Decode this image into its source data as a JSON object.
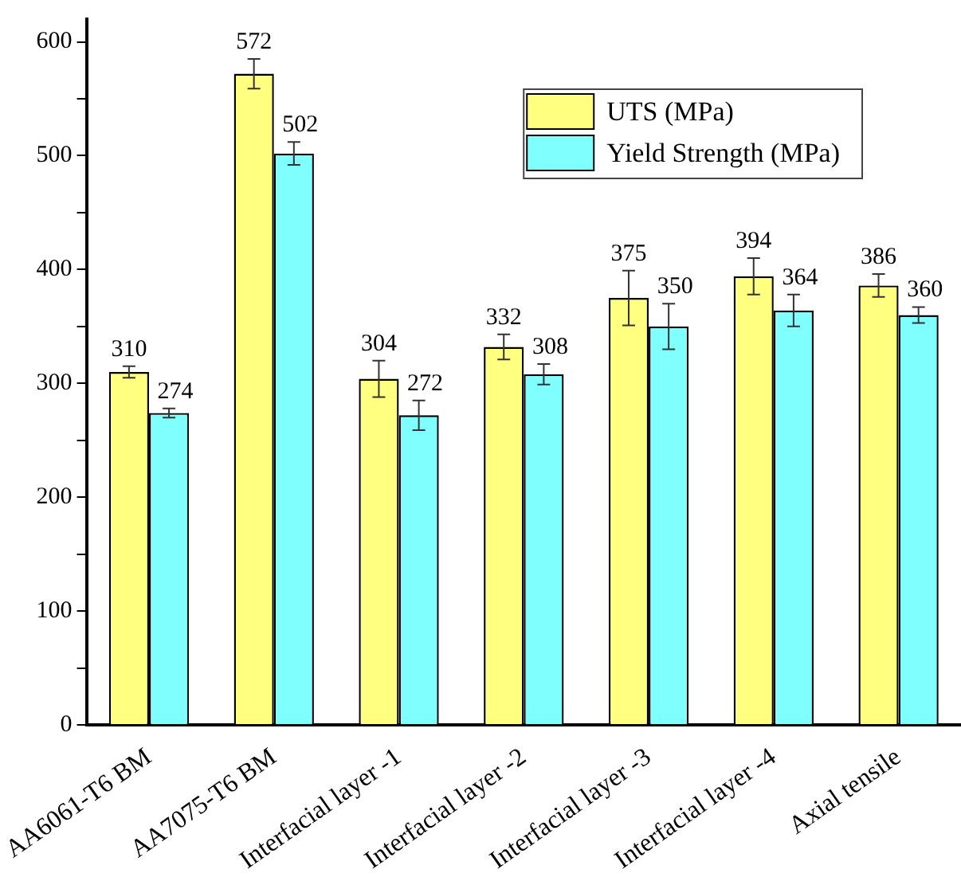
{
  "chart_data": {
    "type": "bar",
    "categories": [
      "AA6061-T6 BM",
      "AA7075-T6 BM",
      "Interfacial layer -1",
      "Interfacial layer -2",
      "Interfacial layer -3",
      "Interfacial layer -4",
      "Axial tensile"
    ],
    "series": [
      {
        "name": "UTS (MPa)",
        "color": "#ffff80",
        "values": [
          310,
          572,
          304,
          332,
          375,
          394,
          386
        ],
        "errors": [
          5,
          13,
          16,
          11,
          24,
          16,
          10
        ]
      },
      {
        "name": "Yield Strength (MPa)",
        "color": "#80ffff",
        "values": [
          274,
          502,
          272,
          308,
          350,
          364,
          360
        ],
        "errors": [
          4,
          10,
          13,
          9,
          20,
          14,
          7
        ]
      }
    ],
    "ylim": [
      0,
      620
    ],
    "yticks": [
      0,
      {
        "value": 50,
        "label": null
      },
      100,
      {
        "value": 150,
        "label": null
      },
      200,
      {
        "value": 250,
        "label": null
      },
      300,
      {
        "value": 350,
        "label": null
      },
      400,
      {
        "value": 450,
        "label": null
      },
      500,
      {
        "value": 550,
        "label": null
      },
      600
    ],
    "grid": false,
    "legend": "top right",
    "data_labels": true
  }
}
